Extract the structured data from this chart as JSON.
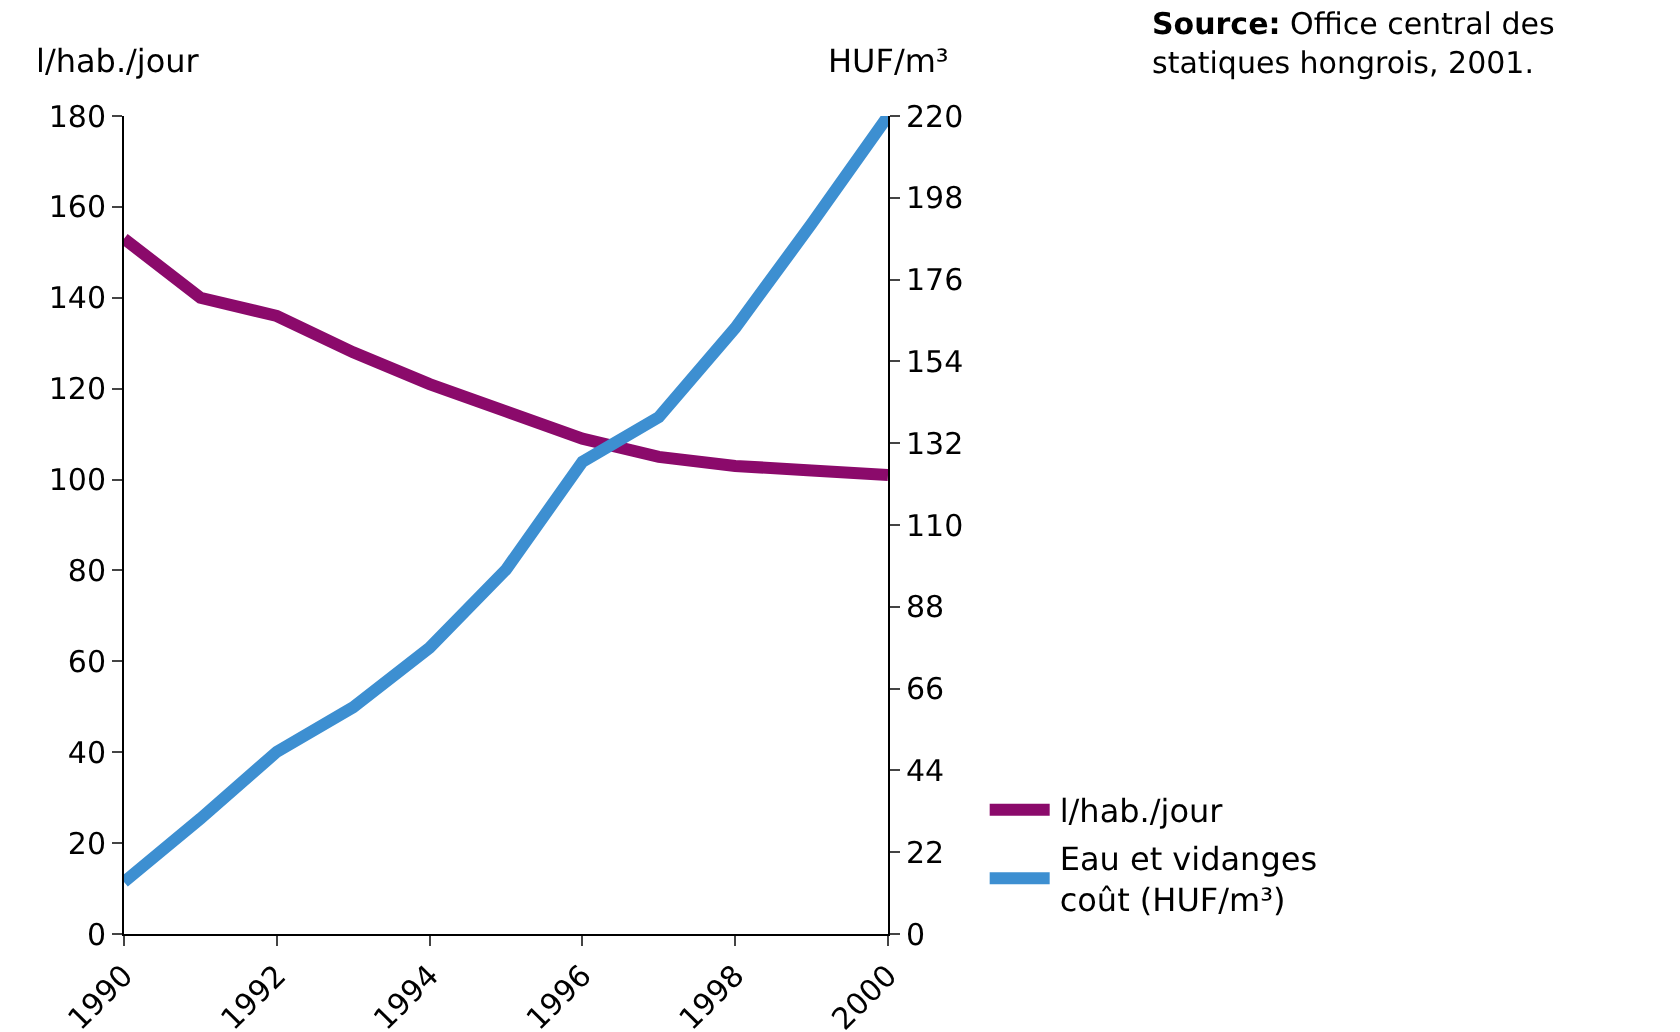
{
  "chart_data": {
    "type": "line",
    "ylabel": "l/hab./jour",
    "y2label": "HUF/m³",
    "annotations": [
      "Source: Office central des statiques hongrois, 2001."
    ],
    "x": [
      1990,
      1991,
      1992,
      1993,
      1994,
      1995,
      1996,
      1997,
      1998,
      1999,
      2000
    ],
    "xlim": [
      1990,
      2000
    ],
    "xticks": [
      1990,
      1992,
      1994,
      1996,
      1998,
      2000
    ],
    "ylim": [
      0,
      180
    ],
    "yticks": [
      0,
      20,
      40,
      60,
      80,
      100,
      120,
      140,
      160,
      180
    ],
    "y2lim": [
      0,
      220
    ],
    "y2ticks": [
      0,
      22,
      44,
      66,
      88,
      110,
      132,
      154,
      176,
      198,
      220
    ],
    "series": [
      {
        "name": "l/hab./jour",
        "color": "#8b0a6b",
        "values": [
          153,
          140,
          136,
          128,
          121,
          115,
          109,
          105,
          103,
          102,
          101
        ]
      },
      {
        "name": "Eau et vidanges coût (HUF/m³)",
        "color": "#3d8fd1",
        "axis": "y2",
        "values": [
          14,
          31,
          49,
          61,
          77,
          98,
          127,
          139,
          163,
          191,
          220
        ]
      }
    ],
    "grid": false,
    "legend": "bottom right",
    "marker": "none",
    "line_style": "solid"
  }
}
